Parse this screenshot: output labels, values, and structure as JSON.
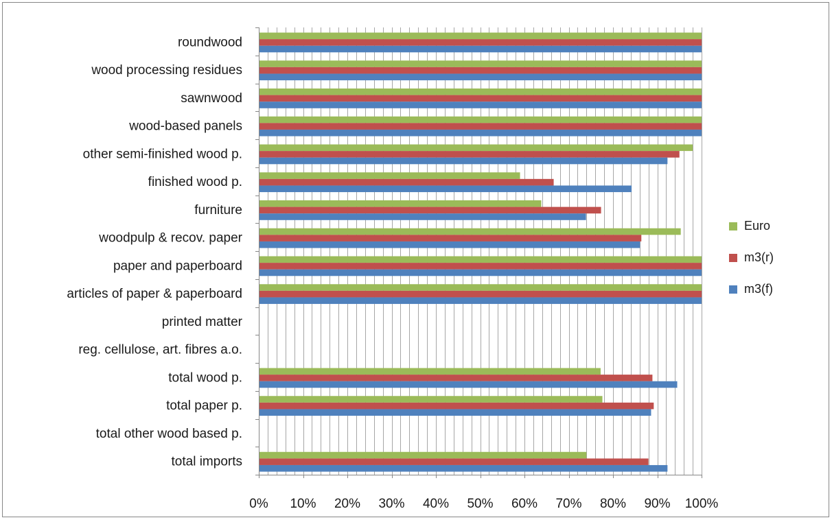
{
  "chart_data": {
    "type": "bar",
    "orientation": "horizontal",
    "categories": [
      "roundwood",
      "wood processing residues",
      "sawnwood",
      "wood-based panels",
      "other semi-finished wood p.",
      "finished  wood p.",
      "furniture",
      "woodpulp & recov. paper",
      "paper and paperboard",
      "articles of paper & paperboard",
      "printed matter",
      "reg. cellulose, art. fibres a.o.",
      "total wood p.",
      "total paper p.",
      "total other wood based p.",
      "total imports"
    ],
    "series": [
      {
        "name": "Euro",
        "color": "#9BBB59",
        "values": [
          100,
          100,
          100,
          100,
          98,
          59,
          63.8,
          95.3,
          100,
          100,
          null,
          null,
          77.2,
          77.6,
          null,
          74
        ]
      },
      {
        "name": "m3(r)",
        "color": "#C0504D",
        "values": [
          100,
          100,
          100,
          100,
          95,
          66.6,
          77.3,
          86.4,
          100,
          100,
          null,
          null,
          88.9,
          89.2,
          null,
          88
        ]
      },
      {
        "name": "m3(f)",
        "color": "#4F81BD",
        "values": [
          100,
          100,
          100,
          100,
          92.3,
          84.2,
          73.9,
          86.1,
          100,
          100,
          null,
          null,
          94.5,
          88.6,
          null,
          92.3
        ]
      }
    ],
    "xlim": [
      0,
      100
    ],
    "xticks": [
      "0%",
      "10%",
      "20%",
      "30%",
      "40%",
      "50%",
      "60%",
      "70%",
      "80%",
      "90%",
      "100%"
    ],
    "legend": {
      "placement": "right",
      "order": [
        "Euro",
        "m3(r)",
        "m3(f)"
      ]
    },
    "grid": {
      "vertical": true,
      "horizontal": false
    },
    "title": "",
    "xlabel": "",
    "ylabel": ""
  },
  "colors": {
    "gridline": "#A6A6A6",
    "axis": "#868686",
    "border": "#868686"
  }
}
